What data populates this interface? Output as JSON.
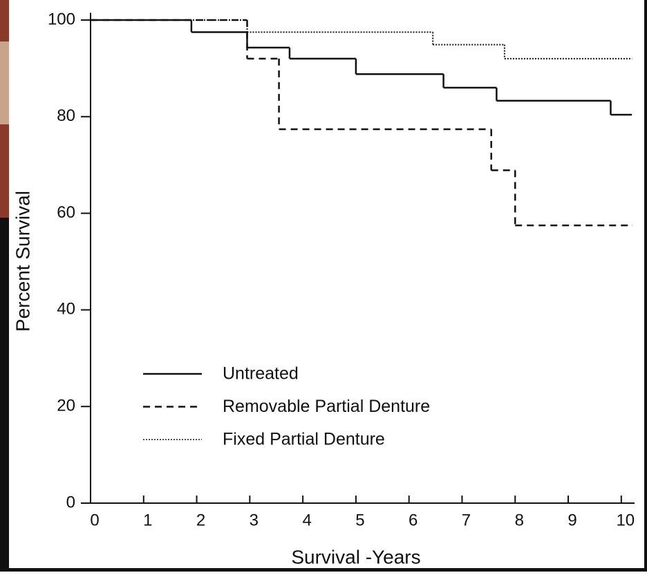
{
  "chart_data": {
    "type": "step",
    "x_label": "Survival -Years",
    "y_label": "Percent Survival",
    "xlim": [
      0,
      10.25
    ],
    "ylim": [
      0,
      101.5
    ],
    "xticks": [
      0,
      1,
      2,
      3,
      4,
      5,
      6,
      7,
      8,
      9,
      10
    ],
    "yticks": [
      0,
      20,
      40,
      60,
      80,
      100
    ],
    "series": [
      {
        "name": "Untreated",
        "color": "#111111",
        "dash": "solid",
        "x": [
          0,
          1.9,
          2.95,
          3.75,
          5.0,
          6.65,
          7.65,
          9.8,
          10.2
        ],
        "values": [
          100,
          97.5,
          94.3,
          92,
          88.8,
          86,
          83.3,
          80.4,
          80.4
        ]
      },
      {
        "name": "Removable Partial Denture",
        "color": "#111111",
        "dash": "dashed",
        "x": [
          0,
          2.95,
          3.55,
          7.55,
          8.0,
          10.2
        ],
        "values": [
          100,
          92,
          77.4,
          68.9,
          57.5,
          57.5
        ]
      },
      {
        "name": "Fixed Partial Denture",
        "color": "#111111",
        "dash": "dotted",
        "x": [
          0,
          2.95,
          6.45,
          7.8,
          10.2
        ],
        "values": [
          100,
          97.5,
          94.9,
          92,
          92
        ]
      }
    ]
  }
}
